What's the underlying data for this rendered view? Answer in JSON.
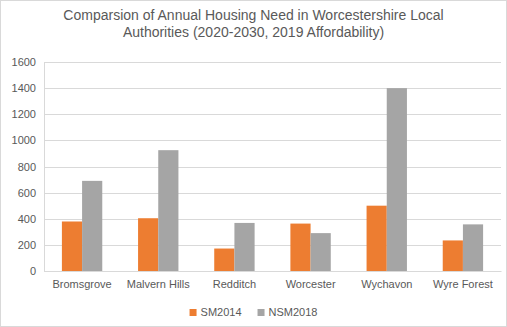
{
  "chart_data": {
    "type": "bar",
    "title": "Comparsion of Annual Housing Need in Worcestershire Local Authorities (2020-2030, 2019 Affordability)",
    "categories": [
      "Bromsgrove",
      "Malvern Hills",
      "Redditch",
      "Worcester",
      "Wychavon",
      "Wyre Forest"
    ],
    "series": [
      {
        "name": "SM2014",
        "color": "#ed7d31",
        "values": [
          379,
          404,
          172,
          363,
          500,
          234
        ]
      },
      {
        "name": "NSM2018",
        "color": "#a5a5a5",
        "values": [
          690,
          925,
          368,
          290,
          1400,
          357
        ]
      }
    ],
    "ylim": [
      0,
      1600
    ],
    "yticks": [
      0,
      200,
      400,
      600,
      800,
      1000,
      1200,
      1400,
      1600
    ],
    "grid": true,
    "legend": "bottom"
  }
}
